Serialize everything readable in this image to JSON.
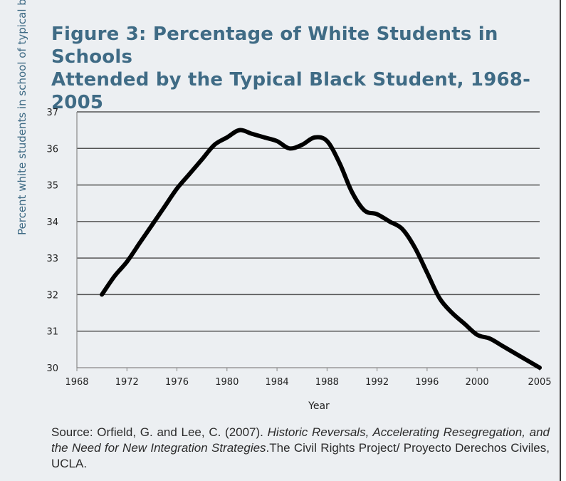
{
  "title": {
    "line1": "Figure 3: Percentage of White Students in Schools",
    "line2": "Attended by the Typical Black Student, 1968-2005"
  },
  "source": {
    "prefix": "Source: Orfield, G. and Lee, C. (2007). ",
    "italic": "Historic Reversals, Accelerating Resegregation, and the Need for New Integration Strategies",
    "suffix": ".The Civil Rights Project/ Proyecto Derechos Civiles, UCLA."
  },
  "colors": {
    "title": "#3f6b85",
    "background": "#eceff2",
    "line": "#000000",
    "grid": "#555555"
  },
  "chart_data": {
    "type": "line",
    "title": "Figure 3: Percentage of White Students in Schools Attended by the Typical Black Student, 1968-2005",
    "xlabel": "Year",
    "ylabel": "Percent white students in school of typical black student",
    "xlim": [
      1968,
      2005
    ],
    "ylim": [
      30,
      37
    ],
    "x_ticks": [
      "1968",
      "1972",
      "1976",
      "1980",
      "1984",
      "1988",
      "1992",
      "1996",
      "2000",
      "2005"
    ],
    "y_ticks": [
      "30",
      "31",
      "32",
      "33",
      "34",
      "35",
      "36",
      "37"
    ],
    "grid": "horizontal",
    "series": [
      {
        "x": [
          1970,
          1971,
          1972,
          1973,
          1974,
          1975,
          1976,
          1977,
          1978,
          1979,
          1980,
          1981,
          1982,
          1983,
          1984,
          1985,
          1986,
          1987,
          1988,
          1989,
          1990,
          1991,
          1992,
          1993,
          1994,
          1995,
          1996,
          1997,
          1998,
          1999,
          2000,
          2001,
          2002,
          2003,
          2004,
          2005
        ],
        "y": [
          32.0,
          32.5,
          32.9,
          33.4,
          33.9,
          34.4,
          34.9,
          35.3,
          35.7,
          36.1,
          36.3,
          36.5,
          36.4,
          36.3,
          36.2,
          36.0,
          36.1,
          36.3,
          36.2,
          35.6,
          34.8,
          34.3,
          34.2,
          34.0,
          33.8,
          33.3,
          32.6,
          31.9,
          31.5,
          31.2,
          30.9,
          30.8,
          30.6,
          30.4,
          30.2,
          30.0
        ]
      }
    ]
  }
}
